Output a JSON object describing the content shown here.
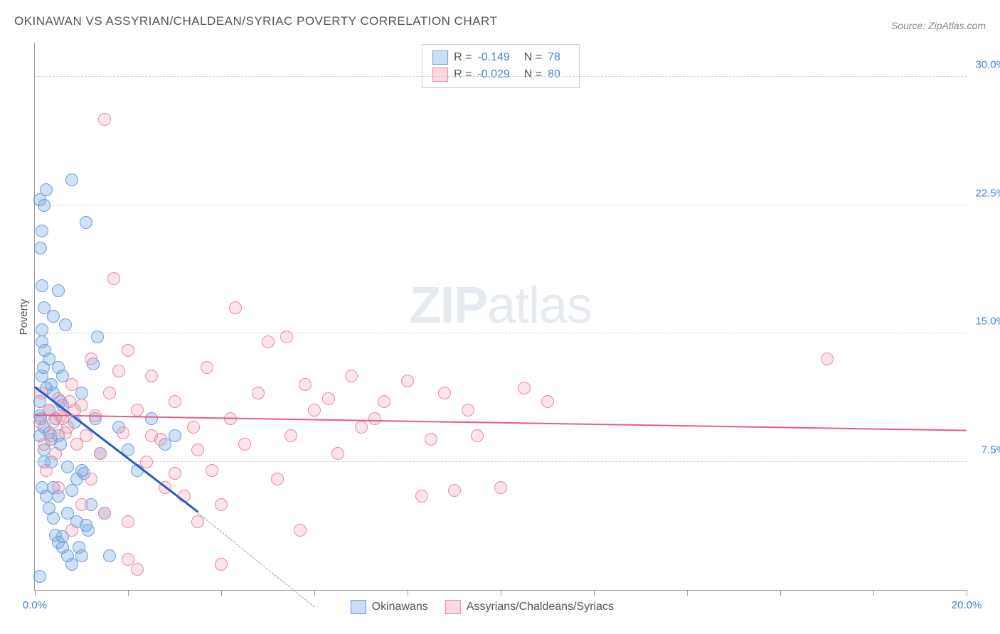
{
  "title": "OKINAWAN VS ASSYRIAN/CHALDEAN/SYRIAC POVERTY CORRELATION CHART",
  "source": "Source: ZipAtlas.com",
  "ylabel": "Poverty",
  "watermark_bold": "ZIP",
  "watermark_rest": "atlas",
  "chart": {
    "type": "scatter",
    "xlim": [
      0,
      20
    ],
    "ylim": [
      0,
      32
    ],
    "yticks": [
      7.5,
      15.0,
      22.5,
      30.0
    ],
    "ytick_labels": [
      "7.5%",
      "15.0%",
      "22.5%",
      "30.0%"
    ],
    "xticks": [
      0,
      2,
      4,
      6,
      8,
      10,
      12,
      14,
      16,
      18,
      20
    ],
    "xtick_labels_shown": {
      "0": "0.0%",
      "20": "20.0%"
    },
    "grid_color": "#cccccc",
    "axis_color": "#999999",
    "background": "#ffffff",
    "marker_radius": 8,
    "series": [
      {
        "name": "Okinawans",
        "color_fill": "rgba(120,170,230,0.35)",
        "color_stroke": "#6a9fd8",
        "R": "-0.149",
        "N": "78",
        "trend": {
          "x1": 0,
          "y1": 11.8,
          "x2": 3.5,
          "y2": 4.5,
          "color": "#2a5bc4",
          "width": 3,
          "dashed_ext": {
            "x2": 6,
            "y2": -1
          }
        },
        "points": [
          [
            0.1,
            9.0
          ],
          [
            0.1,
            10.2
          ],
          [
            0.1,
            11.0
          ],
          [
            0.15,
            14.5
          ],
          [
            0.15,
            15.2
          ],
          [
            0.2,
            16.5
          ],
          [
            0.15,
            17.8
          ],
          [
            0.2,
            22.5
          ],
          [
            0.25,
            23.4
          ],
          [
            0.3,
            10.5
          ],
          [
            0.35,
            12.0
          ],
          [
            0.4,
            6.0
          ],
          [
            0.45,
            3.2
          ],
          [
            0.5,
            5.5
          ],
          [
            0.55,
            8.5
          ],
          [
            0.6,
            10.8
          ],
          [
            0.65,
            15.5
          ],
          [
            0.7,
            7.2
          ],
          [
            0.8,
            24.0
          ],
          [
            0.85,
            9.8
          ],
          [
            0.9,
            4.0
          ],
          [
            0.95,
            2.5
          ],
          [
            1.0,
            11.5
          ],
          [
            1.05,
            6.8
          ],
          [
            1.1,
            21.5
          ],
          [
            1.15,
            3.5
          ],
          [
            1.2,
            5.0
          ],
          [
            1.25,
            13.2
          ],
          [
            0.5,
            2.8
          ],
          [
            0.6,
            3.1
          ],
          [
            0.7,
            4.5
          ],
          [
            0.8,
            5.8
          ],
          [
            0.9,
            6.5
          ],
          [
            1.0,
            7.0
          ],
          [
            1.1,
            3.8
          ],
          [
            1.3,
            10.0
          ],
          [
            1.35,
            14.8
          ],
          [
            1.4,
            8.0
          ],
          [
            1.5,
            4.5
          ],
          [
            1.6,
            2.0
          ],
          [
            0.3,
            13.5
          ],
          [
            0.4,
            16.0
          ],
          [
            0.5,
            17.5
          ],
          [
            0.2,
            9.5
          ],
          [
            0.25,
            11.8
          ],
          [
            0.15,
            12.5
          ],
          [
            0.35,
            8.8
          ],
          [
            1.8,
            9.5
          ],
          [
            2.0,
            8.2
          ],
          [
            2.2,
            7.0
          ],
          [
            2.5,
            10.0
          ],
          [
            2.8,
            8.5
          ],
          [
            3.0,
            9.0
          ],
          [
            1.0,
            2.0
          ],
          [
            0.8,
            1.5
          ],
          [
            0.15,
            6.0
          ],
          [
            0.2,
            7.5
          ],
          [
            0.3,
            4.8
          ],
          [
            0.12,
            10.0
          ],
          [
            0.18,
            13.0
          ],
          [
            0.22,
            14.0
          ],
          [
            0.12,
            20.0
          ],
          [
            0.1,
            22.8
          ],
          [
            0.2,
            8.2
          ],
          [
            0.3,
            9.2
          ],
          [
            0.4,
            11.5
          ],
          [
            0.5,
            13.0
          ],
          [
            0.6,
            12.5
          ],
          [
            0.45,
            10.0
          ],
          [
            0.55,
            11.0
          ],
          [
            0.35,
            7.5
          ],
          [
            0.25,
            5.5
          ],
          [
            0.4,
            4.2
          ],
          [
            0.6,
            2.5
          ],
          [
            0.7,
            2.0
          ],
          [
            0.5,
            9.0
          ],
          [
            0.15,
            21.0
          ],
          [
            0.1,
            0.8
          ]
        ]
      },
      {
        "name": "Assyrians/Chaldeans/Syriacs",
        "color_fill": "rgba(240,150,170,0.25)",
        "color_stroke": "#e88aa0",
        "R": "-0.029",
        "N": "80",
        "trend": {
          "x1": 0,
          "y1": 10.2,
          "x2": 20,
          "y2": 9.3,
          "color": "#e85a8a",
          "width": 2
        },
        "points": [
          [
            0.3,
            10.5
          ],
          [
            0.4,
            9.8
          ],
          [
            0.5,
            11.2
          ],
          [
            0.6,
            10.0
          ],
          [
            0.7,
            9.5
          ],
          [
            0.8,
            12.0
          ],
          [
            0.9,
            8.5
          ],
          [
            1.0,
            10.8
          ],
          [
            1.1,
            9.0
          ],
          [
            1.2,
            13.5
          ],
          [
            1.3,
            10.2
          ],
          [
            1.4,
            8.0
          ],
          [
            1.5,
            27.5
          ],
          [
            1.6,
            11.5
          ],
          [
            1.7,
            18.2
          ],
          [
            1.8,
            12.8
          ],
          [
            1.9,
            9.2
          ],
          [
            2.0,
            14.0
          ],
          [
            2.2,
            10.5
          ],
          [
            2.4,
            7.5
          ],
          [
            2.5,
            12.5
          ],
          [
            2.7,
            8.8
          ],
          [
            2.8,
            6.0
          ],
          [
            3.0,
            11.0
          ],
          [
            3.2,
            5.5
          ],
          [
            3.4,
            9.5
          ],
          [
            3.5,
            4.0
          ],
          [
            3.7,
            13.0
          ],
          [
            3.8,
            7.0
          ],
          [
            4.0,
            1.5
          ],
          [
            4.2,
            10.0
          ],
          [
            4.3,
            16.5
          ],
          [
            4.5,
            8.5
          ],
          [
            4.8,
            11.5
          ],
          [
            5.0,
            14.5
          ],
          [
            5.2,
            6.5
          ],
          [
            5.4,
            14.8
          ],
          [
            5.5,
            9.0
          ],
          [
            5.7,
            3.5
          ],
          [
            5.8,
            12.0
          ],
          [
            6.0,
            10.5
          ],
          [
            6.3,
            11.2
          ],
          [
            6.5,
            8.0
          ],
          [
            6.8,
            12.5
          ],
          [
            7.0,
            9.5
          ],
          [
            7.3,
            10.0
          ],
          [
            7.5,
            11.0
          ],
          [
            8.0,
            12.2
          ],
          [
            8.3,
            5.5
          ],
          [
            8.5,
            8.8
          ],
          [
            8.8,
            11.5
          ],
          [
            9.0,
            5.8
          ],
          [
            9.3,
            10.5
          ],
          [
            9.5,
            9.0
          ],
          [
            10.0,
            6.0
          ],
          [
            10.5,
            11.8
          ],
          [
            11.0,
            11.0
          ],
          [
            17.0,
            13.5
          ],
          [
            0.2,
            8.5
          ],
          [
            0.25,
            7.0
          ],
          [
            0.35,
            9.0
          ],
          [
            0.45,
            8.0
          ],
          [
            0.55,
            10.2
          ],
          [
            0.65,
            9.2
          ],
          [
            0.75,
            11.0
          ],
          [
            0.85,
            10.5
          ],
          [
            0.1,
            9.8
          ],
          [
            0.15,
            11.5
          ],
          [
            1.0,
            5.0
          ],
          [
            1.5,
            4.5
          ],
          [
            2.0,
            1.8
          ],
          [
            2.5,
            9.0
          ],
          [
            3.0,
            6.8
          ],
          [
            3.5,
            8.2
          ],
          [
            4.0,
            5.0
          ],
          [
            1.2,
            6.5
          ],
          [
            0.5,
            6.0
          ],
          [
            0.8,
            3.5
          ],
          [
            2.0,
            4.0
          ],
          [
            2.2,
            1.2
          ]
        ]
      }
    ]
  },
  "legend_top": [
    {
      "swatch": "blue",
      "R_label": "R =",
      "R": "-0.149",
      "N_label": "N =",
      "N": "78"
    },
    {
      "swatch": "pink",
      "R_label": "R =",
      "R": "-0.029",
      "N_label": "N =",
      "N": "80"
    }
  ],
  "legend_bottom": [
    {
      "swatch": "blue",
      "label": "Okinawans"
    },
    {
      "swatch": "pink",
      "label": "Assyrians/Chaldeans/Syriacs"
    }
  ]
}
